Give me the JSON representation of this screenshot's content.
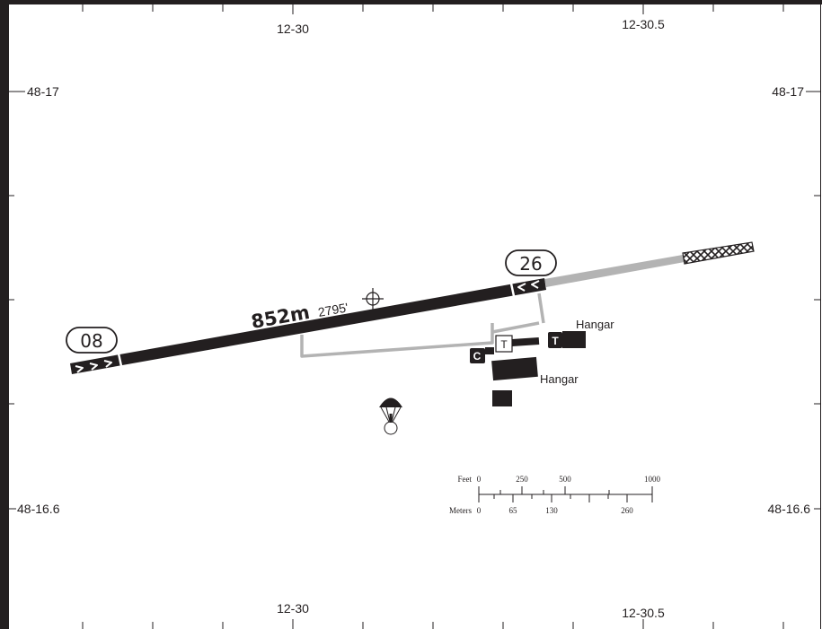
{
  "map": {
    "longitudes": {
      "left": "12-30",
      "right": "12-30.5"
    },
    "latitudes": {
      "upper": "48-17",
      "lower": "48-16.6"
    },
    "runway": {
      "end_west": "08",
      "end_east": "26",
      "length_m": "852m",
      "length_ft": "2795'"
    },
    "buildings": [
      {
        "label": "Hangar"
      },
      {
        "label": "Hangar"
      }
    ],
    "markers": {
      "tower_letter": "T",
      "fuel_letter": "T",
      "customs_letter": "C"
    },
    "scale": {
      "feet_label": "Feet",
      "feet_ticks": [
        "0",
        "250",
        "500",
        "1000"
      ],
      "meters_label": "Meters",
      "meters_ticks": [
        "0",
        "65",
        "130",
        "260"
      ]
    },
    "icons": [
      "parachute-icon",
      "airport-reference-point-icon"
    ]
  }
}
